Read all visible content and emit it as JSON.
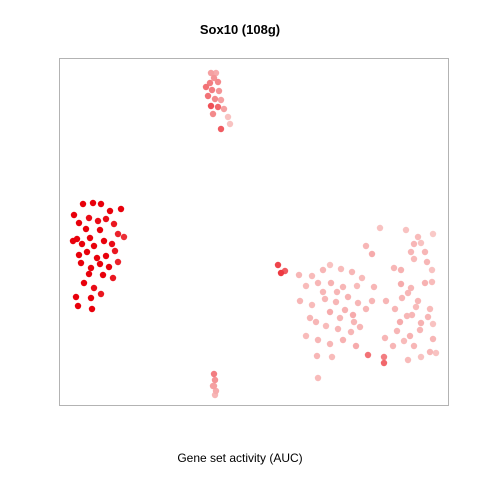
{
  "chart_data": {
    "type": "scatter",
    "title": "Sox10 (108g)",
    "xlabel": "Gene set activity (AUC)",
    "ylabel": "",
    "grid": false,
    "legend": "none",
    "color_scale": {
      "low": "#fbe4e1",
      "high": "#e8000b"
    },
    "point_note_fields": [
      "x",
      "y",
      "activity"
    ],
    "points": [
      [
        74,
        215,
        1
      ],
      [
        83,
        204,
        1
      ],
      [
        93,
        203,
        1
      ],
      [
        101,
        204,
        1
      ],
      [
        110,
        211,
        1
      ],
      [
        121,
        209,
        1
      ],
      [
        79,
        223,
        1
      ],
      [
        89,
        218,
        0.95
      ],
      [
        98,
        221,
        0.95
      ],
      [
        106,
        219,
        0.95
      ],
      [
        114,
        224,
        0.9
      ],
      [
        86,
        229,
        1
      ],
      [
        100,
        230,
        1
      ],
      [
        118,
        234,
        0.85
      ],
      [
        77,
        239,
        1
      ],
      [
        82,
        244,
        1
      ],
      [
        90,
        238,
        1
      ],
      [
        94,
        246,
        1
      ],
      [
        104,
        241,
        1
      ],
      [
        112,
        244,
        0.95
      ],
      [
        124,
        237,
        0.8
      ],
      [
        73,
        241,
        1
      ],
      [
        79,
        255,
        1
      ],
      [
        87,
        252,
        1
      ],
      [
        97,
        258,
        1
      ],
      [
        106,
        256,
        1
      ],
      [
        115,
        251,
        0.9
      ],
      [
        81,
        263,
        1
      ],
      [
        91,
        268,
        1
      ],
      [
        100,
        264,
        1
      ],
      [
        109,
        267,
        1
      ],
      [
        118,
        262,
        0.85
      ],
      [
        89,
        274,
        1
      ],
      [
        103,
        275,
        1
      ],
      [
        113,
        278,
        0.9
      ],
      [
        84,
        283,
        1
      ],
      [
        94,
        288,
        0.95
      ],
      [
        76,
        297,
        1
      ],
      [
        91,
        298,
        1
      ],
      [
        101,
        294,
        0.9
      ],
      [
        78,
        306,
        1
      ],
      [
        92,
        309,
        1
      ],
      [
        211,
        73,
        0.3
      ],
      [
        216,
        73,
        0.25
      ],
      [
        214,
        78,
        0.35
      ],
      [
        210,
        83,
        0.45
      ],
      [
        218,
        82,
        0.4
      ],
      [
        206,
        87,
        0.5
      ],
      [
        212,
        90,
        0.45
      ],
      [
        219,
        91,
        0.35
      ],
      [
        208,
        96,
        0.5
      ],
      [
        215,
        99,
        0.4
      ],
      [
        221,
        100,
        0.3
      ],
      [
        211,
        106,
        0.65
      ],
      [
        218,
        107,
        0.55
      ],
      [
        224,
        109,
        0.3
      ],
      [
        213,
        114,
        0.4
      ],
      [
        228,
        117,
        0.15
      ],
      [
        230,
        124,
        0.15
      ],
      [
        221,
        129,
        0.6
      ],
      [
        214,
        374,
        0.45
      ],
      [
        215,
        380,
        0.35
      ],
      [
        213,
        386,
        0.3
      ],
      [
        216,
        391,
        0.25
      ],
      [
        215,
        395,
        0.2
      ],
      [
        214,
        386,
        0.3
      ],
      [
        278,
        265,
        0.7
      ],
      [
        285,
        271,
        0.6
      ],
      [
        281,
        273,
        0.75
      ],
      [
        299,
        275,
        0.2
      ],
      [
        312,
        276,
        0.18
      ],
      [
        323,
        270,
        0.2
      ],
      [
        330,
        265,
        0.15
      ],
      [
        341,
        269,
        0.18
      ],
      [
        352,
        272,
        0.2
      ],
      [
        366,
        246,
        0.2
      ],
      [
        372,
        254,
        0.25
      ],
      [
        380,
        228,
        0.15
      ],
      [
        306,
        286,
        0.18
      ],
      [
        318,
        283,
        0.2
      ],
      [
        331,
        283,
        0.22
      ],
      [
        343,
        287,
        0.2
      ],
      [
        357,
        286,
        0.18
      ],
      [
        394,
        268,
        0.2
      ],
      [
        401,
        270,
        0.22
      ],
      [
        414,
        259,
        0.18
      ],
      [
        425,
        252,
        0.2
      ],
      [
        432,
        270,
        0.15
      ],
      [
        406,
        230,
        0.15
      ],
      [
        414,
        244,
        0.2
      ],
      [
        418,
        237,
        0.18
      ],
      [
        411,
        252,
        0.2
      ],
      [
        421,
        243,
        0.15
      ],
      [
        433,
        234,
        0.12
      ],
      [
        427,
        262,
        0.2
      ],
      [
        401,
        284,
        0.25
      ],
      [
        411,
        288,
        0.2
      ],
      [
        425,
        283,
        0.22
      ],
      [
        432,
        282,
        0.18
      ],
      [
        408,
        293,
        0.2
      ],
      [
        418,
        301,
        0.2
      ],
      [
        430,
        309,
        0.18
      ],
      [
        407,
        316,
        0.2
      ],
      [
        421,
        323,
        0.22
      ],
      [
        400,
        322,
        0.25
      ],
      [
        412,
        315,
        0.2
      ],
      [
        428,
        317,
        0.2
      ],
      [
        433,
        324,
        0.15
      ],
      [
        300,
        301,
        0.2
      ],
      [
        312,
        305,
        0.18
      ],
      [
        325,
        299,
        0.2
      ],
      [
        336,
        302,
        0.2
      ],
      [
        348,
        297,
        0.22
      ],
      [
        358,
        303,
        0.2
      ],
      [
        366,
        309,
        0.2
      ],
      [
        372,
        301,
        0.2
      ],
      [
        330,
        312,
        0.25
      ],
      [
        340,
        318,
        0.2
      ],
      [
        353,
        315,
        0.25
      ],
      [
        316,
        322,
        0.2
      ],
      [
        326,
        326,
        0.18
      ],
      [
        338,
        329,
        0.2
      ],
      [
        351,
        332,
        0.2
      ],
      [
        360,
        327,
        0.2
      ],
      [
        306,
        336,
        0.18
      ],
      [
        318,
        340,
        0.2
      ],
      [
        330,
        344,
        0.2
      ],
      [
        343,
        340,
        0.22
      ],
      [
        356,
        346,
        0.25
      ],
      [
        368,
        355,
        0.5
      ],
      [
        384,
        357,
        0.45
      ],
      [
        384,
        363,
        0.55
      ],
      [
        317,
        356,
        0.2
      ],
      [
        332,
        357,
        0.18
      ],
      [
        318,
        378,
        0.18
      ],
      [
        393,
        346,
        0.2
      ],
      [
        404,
        341,
        0.18
      ],
      [
        414,
        346,
        0.2
      ],
      [
        430,
        352,
        0.2
      ],
      [
        436,
        353,
        0.15
      ],
      [
        408,
        360,
        0.18
      ],
      [
        421,
        357,
        0.15
      ],
      [
        433,
        339,
        0.2
      ],
      [
        395,
        309,
        0.2
      ],
      [
        323,
        292,
        0.2
      ],
      [
        345,
        310,
        0.22
      ],
      [
        354,
        322,
        0.2
      ],
      [
        337,
        292,
        0.2
      ],
      [
        310,
        318,
        0.2
      ],
      [
        386,
        301,
        0.2
      ],
      [
        397,
        331,
        0.2
      ],
      [
        410,
        336,
        0.22
      ],
      [
        420,
        330,
        0.2
      ],
      [
        416,
        307,
        0.18
      ],
      [
        402,
        298,
        0.2
      ],
      [
        385,
        338,
        0.2
      ],
      [
        362,
        278,
        0.18
      ],
      [
        374,
        287,
        0.2
      ]
    ]
  }
}
